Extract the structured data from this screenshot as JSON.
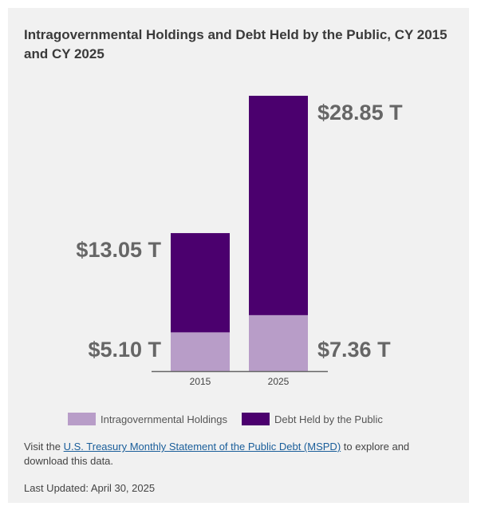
{
  "title": "Intragovernmental Holdings and Debt Held by the Public, CY 2015 and CY 2025",
  "chart_data": {
    "type": "bar",
    "stacked": true,
    "categories": [
      "2015",
      "2025"
    ],
    "series": [
      {
        "name": "Intragovernmental Holdings",
        "values": [
          5.1,
          7.36
        ],
        "labels": [
          "$5.10 T",
          "$7.36 T"
        ],
        "color": "#b89dc8"
      },
      {
        "name": "Debt Held by the Public",
        "values": [
          13.05,
          28.85
        ],
        "labels": [
          "$13.05 T",
          "$28.85 T"
        ],
        "color": "#4b006e"
      }
    ],
    "xlabel": "",
    "ylabel": "",
    "grid": false,
    "legend_position": "bottom"
  },
  "footer": {
    "prefix": "Visit the ",
    "link_text": "U.S. Treasury Monthly Statement of the Public Debt (MSPD)",
    "suffix": " to explore and download this data.",
    "updated": "Last Updated: April 30, 2025"
  },
  "colors": {
    "background": "#f1f1f1",
    "label_text": "#666666",
    "axis": "#666666",
    "link": "#1a5e9a"
  }
}
